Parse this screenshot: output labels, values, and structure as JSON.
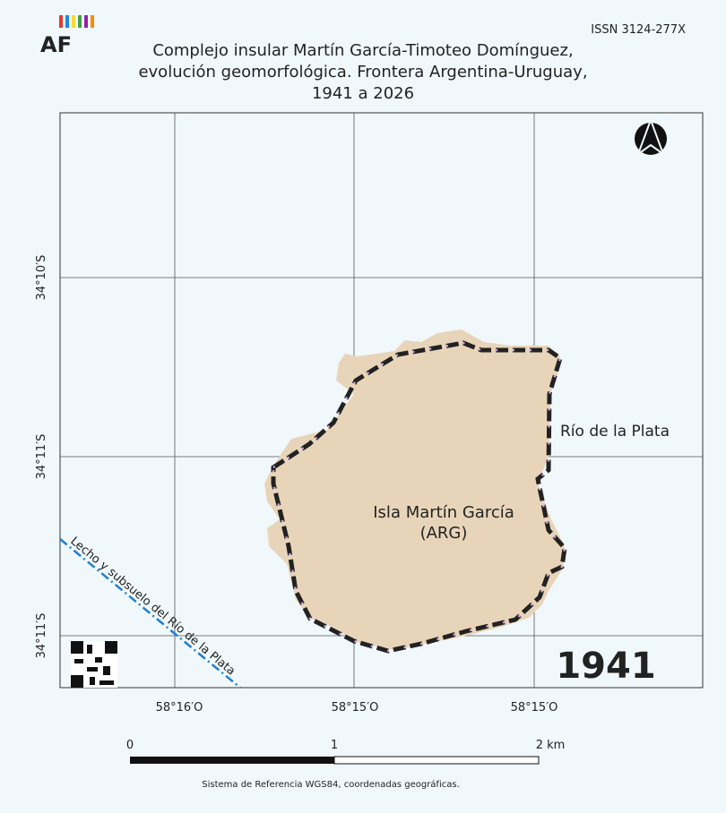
{
  "header": {
    "logo": "AF",
    "issn": "ISSN 3124-277X",
    "title": [
      "Complejo insular Martín García-Timoteo Domínguez,",
      "evolución geomorfológica. Frontera Argentina-Uruguay,",
      "1941 a 2026"
    ]
  },
  "map": {
    "latitude_labels": [
      "34°10′S",
      "34°11′S",
      "34°11′S"
    ],
    "longitude_labels": [
      "58°16′O",
      "58°15′O",
      "58°15′O"
    ],
    "labels": {
      "river": "Río de la Plata",
      "island": "Isla Martín García",
      "country": "(ARG)",
      "riverbed": "Lecho y subsuelo del Río de la Plata"
    },
    "year": "1941"
  },
  "scale_bar": {
    "labels": [
      "0",
      "1",
      "2 km"
    ]
  },
  "footer": "Sistema de Referencia WGS84, coordenadas geográficas."
}
